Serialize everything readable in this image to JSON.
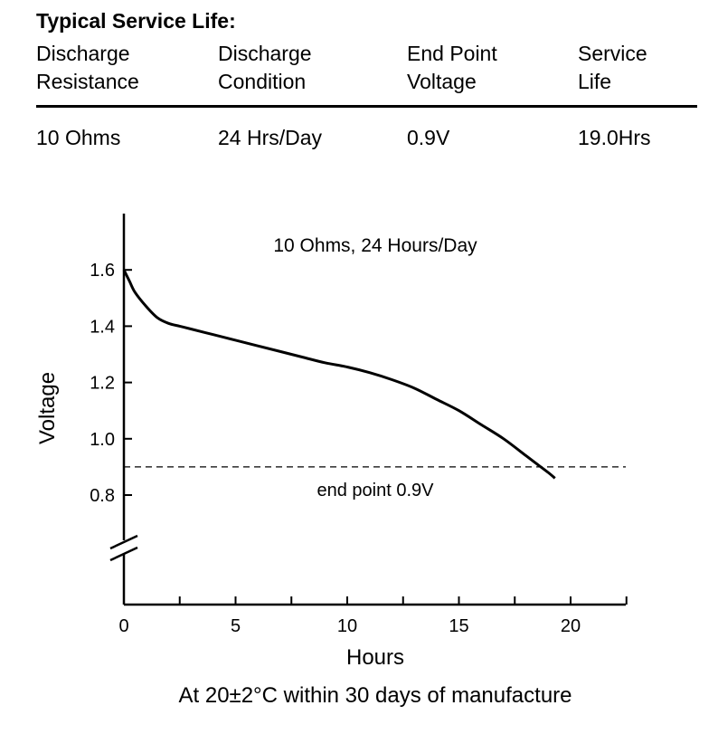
{
  "table": {
    "heading": "Typical Service Life:",
    "columns": [
      {
        "line1": "Discharge",
        "line2": "Resistance",
        "value": "10 Ohms"
      },
      {
        "line1": "Discharge",
        "line2": "Condition",
        "value": "24 Hrs/Day"
      },
      {
        "line1": "End Point",
        "line2": "Voltage",
        "value": "0.9V"
      },
      {
        "line1": "Service",
        "line2": "Life",
        "value": "19.0Hrs"
      }
    ]
  },
  "chart_data": {
    "type": "line",
    "title": "10 Ohms, 24 Hours/Day",
    "xlabel": "Hours",
    "ylabel": "Voltage",
    "caption": "At 20±2°C within 30 days of manufacture",
    "xlim": [
      0,
      22.5
    ],
    "ylim": [
      0.6,
      1.8
    ],
    "x_ticks": [
      0,
      5,
      10,
      15,
      20
    ],
    "x_minor_ticks": [
      2.5,
      7.5,
      12.5,
      17.5,
      22.5
    ],
    "y_ticks": [
      0.8,
      1.0,
      1.2,
      1.4,
      1.6
    ],
    "y_tick_labels": [
      "0.8",
      "1.0",
      "1.2",
      "1.4",
      "1.6"
    ],
    "axis_break": true,
    "reference_line": {
      "y": 0.9,
      "label": "end point 0.9V",
      "style": "dashed"
    },
    "series": [
      {
        "name": "10 Ohms, 24 Hours/Day",
        "x": [
          0,
          0.25,
          0.5,
          1,
          1.5,
          2,
          2.5,
          3,
          4,
          5,
          6,
          7,
          8,
          9,
          10,
          11,
          12,
          13,
          14,
          15,
          16,
          17,
          18,
          18.5,
          19.0,
          19.3
        ],
        "y": [
          1.6,
          1.56,
          1.52,
          1.47,
          1.43,
          1.41,
          1.4,
          1.39,
          1.37,
          1.35,
          1.33,
          1.31,
          1.29,
          1.27,
          1.255,
          1.235,
          1.21,
          1.18,
          1.14,
          1.1,
          1.05,
          1.0,
          0.94,
          0.91,
          0.88,
          0.86
        ]
      }
    ]
  }
}
